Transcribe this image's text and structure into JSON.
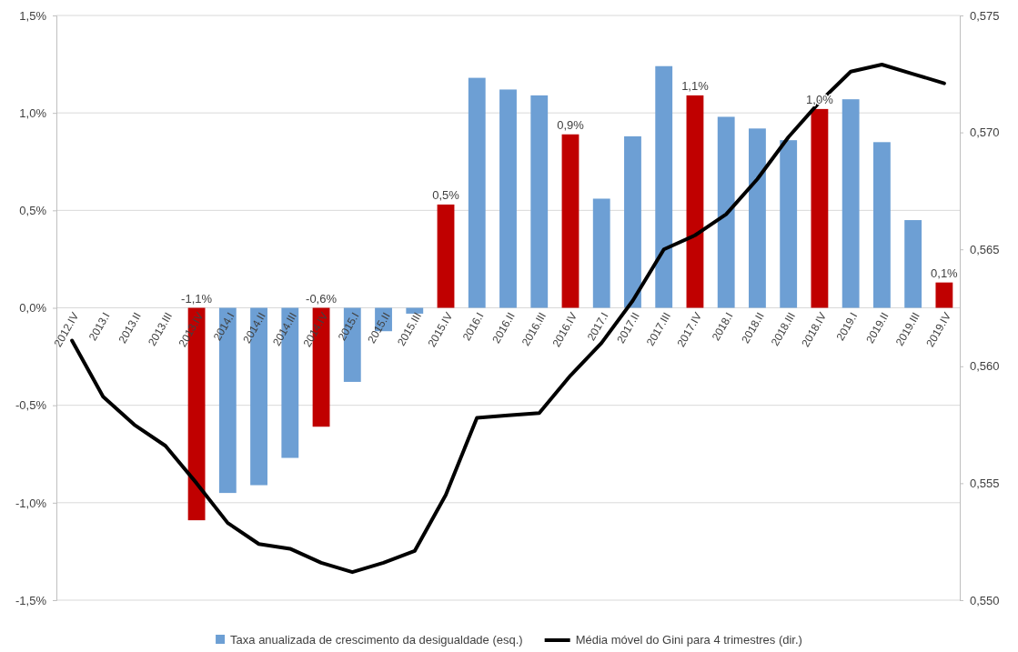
{
  "chart_data": {
    "type": "bar",
    "categories": [
      "2012.IV",
      "2013.I",
      "2013.II",
      "2013.III",
      "2013.IV",
      "2014.I",
      "2014.II",
      "2014.III",
      "2014.IV",
      "2015.I",
      "2015.II",
      "2015.III",
      "2015.IV",
      "2016.I",
      "2016.II",
      "2016.III",
      "2016.IV",
      "2017.I",
      "2017.II",
      "2017.III",
      "2017.IV",
      "2018.I",
      "2018.II",
      "2018.III",
      "2018.IV",
      "2019.I",
      "2019.II",
      "2019.III",
      "2019.IV"
    ],
    "series": [
      {
        "name": "Taxa anualizada de crescimento da desigualdade (esq.)",
        "color": "#6d9fd4",
        "colors": [
          null,
          null,
          null,
          null,
          "#c00000",
          "#6d9fd4",
          "#6d9fd4",
          "#6d9fd4",
          "#c00000",
          "#6d9fd4",
          "#6d9fd4",
          "#6d9fd4",
          "#c00000",
          "#6d9fd4",
          "#6d9fd4",
          "#6d9fd4",
          "#c00000",
          "#6d9fd4",
          "#6d9fd4",
          "#6d9fd4",
          "#c00000",
          "#6d9fd4",
          "#6d9fd4",
          "#6d9fd4",
          "#c00000",
          "#6d9fd4",
          "#6d9fd4",
          "#6d9fd4",
          "#c00000"
        ],
        "values": [
          null,
          null,
          null,
          null,
          -1.09,
          -0.95,
          -0.91,
          -0.77,
          -0.61,
          -0.38,
          -0.12,
          -0.03,
          0.53,
          1.18,
          1.12,
          1.09,
          0.89,
          0.56,
          0.88,
          1.24,
          1.09,
          0.98,
          0.92,
          0.86,
          1.02,
          1.07,
          0.85,
          0.45,
          0.13
        ],
        "value_labels": [
          null,
          null,
          null,
          null,
          "-1,1%",
          null,
          null,
          null,
          "-0,6%",
          null,
          null,
          null,
          "0,5%",
          null,
          null,
          null,
          "0,9%",
          null,
          null,
          null,
          "1,1%",
          null,
          null,
          null,
          "1,0%",
          null,
          null,
          null,
          "0,1%"
        ]
      },
      {
        "name": "Média móvel do Gini para 4 trimestres (dir.)",
        "type": "line",
        "axis": "y2",
        "color": "#000000",
        "values": [
          0.5611,
          0.5587,
          0.5575,
          0.5566,
          0.555,
          0.5533,
          0.5524,
          0.5522,
          0.5516,
          0.5512,
          0.5516,
          0.5521,
          0.5545,
          0.5578,
          0.5579,
          0.558,
          0.5596,
          0.561,
          0.5628,
          0.565,
          0.5656,
          0.5665,
          0.568,
          0.5698,
          0.5713,
          0.5726,
          0.5729,
          0.5725,
          0.5721
        ]
      }
    ],
    "ylim": [
      -1.5,
      1.5
    ],
    "yticks": [
      {
        "value": -1.5,
        "label": "-1,5%"
      },
      {
        "value": -1,
        "label": "-1,0%"
      },
      {
        "value": -0.5,
        "label": "-0,5%"
      },
      {
        "value": 0,
        "label": "0,0%"
      },
      {
        "value": 0.5,
        "label": "0,5%"
      },
      {
        "value": 1,
        "label": "1,0%"
      },
      {
        "value": 1.5,
        "label": "1,5%"
      }
    ],
    "y2lim": [
      0.55,
      0.575
    ],
    "y2ticks": [
      {
        "value": 0.55,
        "label": "0,550"
      },
      {
        "value": 0.555,
        "label": "0,555"
      },
      {
        "value": 0.56,
        "label": "0,560"
      },
      {
        "value": 0.565,
        "label": "0,565"
      },
      {
        "value": 0.57,
        "label": "0,570"
      },
      {
        "value": 0.575,
        "label": "0,575"
      }
    ],
    "grid": "y",
    "legend": "bottom"
  }
}
